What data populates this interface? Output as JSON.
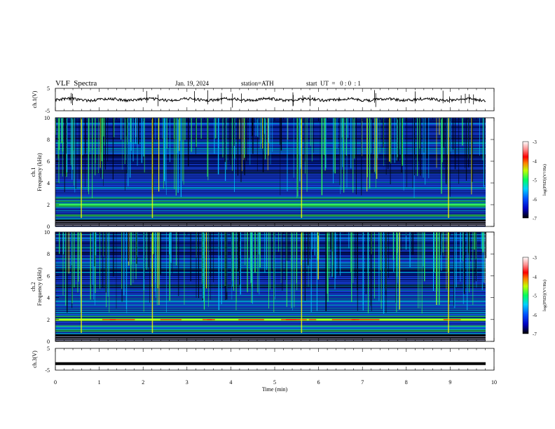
{
  "header": {
    "title": "VLF  Spectra",
    "date": "Jan. 19, 2024",
    "station": "station=ATH",
    "start": "start  UT  =   0 : 0  : 1"
  },
  "chart_data": [
    {
      "type": "line",
      "panel": "ch1-waveform",
      "ylabel": "ch.1(V)",
      "ylim": [
        -5,
        5
      ],
      "yticks": [
        "5",
        "-5"
      ],
      "xlim": [
        0,
        10
      ],
      "baseline": 0,
      "color": "#000000"
    },
    {
      "type": "heatmap",
      "panel": "ch1-spectrogram",
      "ylabel_line1": "ch.1",
      "ylabel_line2": "Frequency (kHz)",
      "ylim": [
        0,
        10
      ],
      "yticks": [
        "10",
        "8",
        "6",
        "4",
        "2",
        "0"
      ],
      "xlim": [
        0,
        10
      ],
      "colorbar": {
        "label": "log(PSD)(V²/Hz)",
        "range": [
          -7,
          -3
        ],
        "ticks": [
          "-3",
          "-4",
          "-5",
          "-6",
          "-7"
        ]
      }
    },
    {
      "type": "heatmap",
      "panel": "ch2-spectrogram",
      "ylabel_line1": "ch.2",
      "ylabel_line2": "Frequency (kHz)",
      "ylim": [
        0,
        10
      ],
      "yticks": [
        "10",
        "8",
        "6",
        "4",
        "2",
        "0"
      ],
      "xlim": [
        0,
        10
      ],
      "colorbar": {
        "label": "log(PSD)(V²/Hz)",
        "range": [
          -7,
          -3
        ],
        "ticks": [
          "-3",
          "-4",
          "-5",
          "-6",
          "-7"
        ]
      }
    },
    {
      "type": "line",
      "panel": "ch3-waveform",
      "ylabel": "ch.3(V)",
      "ylim": [
        -5,
        5
      ],
      "yticks": [
        "5",
        "-5"
      ],
      "xlim": [
        0,
        10
      ],
      "baseline": -2,
      "color": "#000000"
    }
  ],
  "xaxis": {
    "label": "Time  (min)",
    "ticks": [
      "0",
      "1",
      "2",
      "3",
      "4",
      "5",
      "6",
      "7",
      "8",
      "9",
      "10"
    ]
  },
  "colors": {
    "background": "#000030",
    "deep_blue": "#00208f",
    "blue": "#1a4dff",
    "cyan": "#00c8ff",
    "green": "#33ff55",
    "yellow": "#ffff00",
    "red": "#ff2000"
  }
}
